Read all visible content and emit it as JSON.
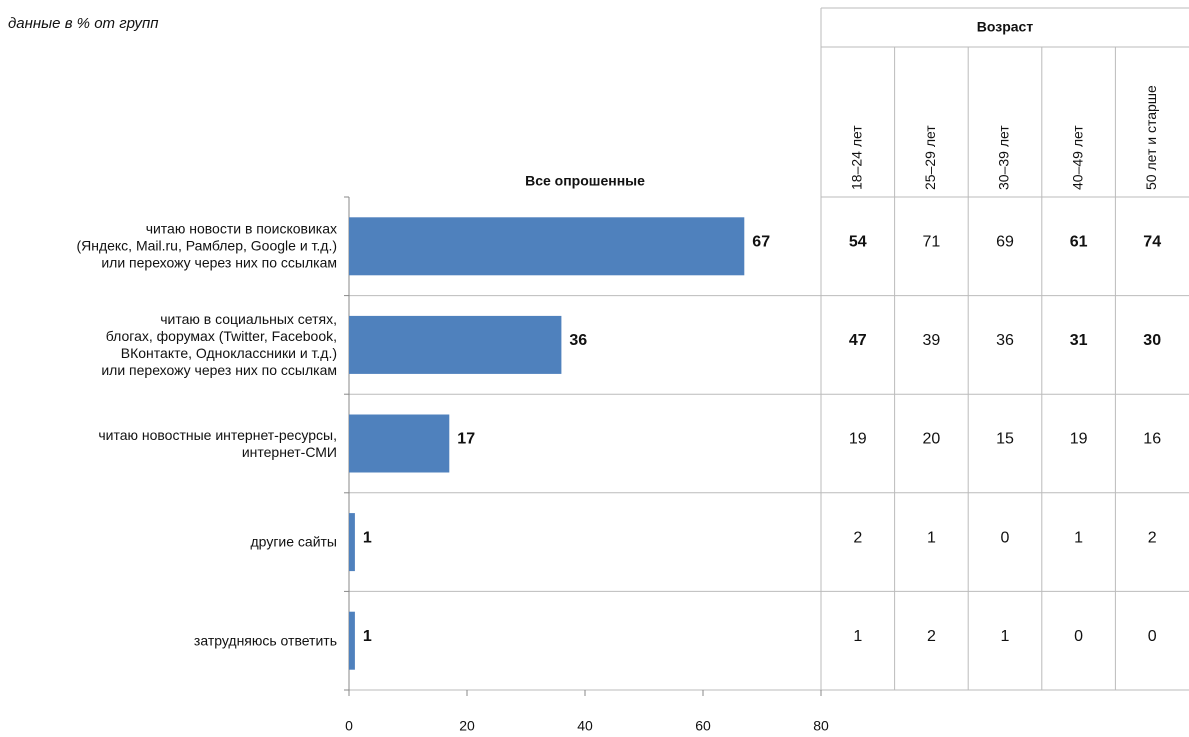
{
  "chart_data": {
    "type": "bar",
    "orientation": "horizontal",
    "subtitle": "данные в % от групп",
    "series_title": "Все опрошенные",
    "categories": [
      "читаю новости в поисковиках\n(Яндекс, Mail.ru, Рамблер, Google и т.д.)\nили перехожу через них по ссылкам",
      "читаю в социальных сетях,\nблогах, форумах (Twitter, Facebook,\nВКонтакте, Одноклассники и т.д.)\nили перехожу через них по ссылкам",
      "читаю новостные интернет-ресурсы,\nинтернет-СМИ",
      "другие сайты",
      "затрудняюсь ответить"
    ],
    "values": [
      67,
      36,
      17,
      1,
      1
    ],
    "color": "#4f81bd",
    "xlim": [
      0,
      80
    ],
    "xticks": [
      0,
      20,
      40,
      60,
      80
    ],
    "table": {
      "title": "Возраст",
      "columns": [
        "18–24 лет",
        "25–29 лет",
        "30–39 лет",
        "40–49 лет",
        "50 лет и старше"
      ],
      "rows": [
        [
          54,
          71,
          69,
          61,
          74
        ],
        [
          47,
          39,
          36,
          31,
          30
        ],
        [
          19,
          20,
          15,
          19,
          16
        ],
        [
          2,
          1,
          0,
          1,
          2
        ],
        [
          1,
          2,
          1,
          0,
          0
        ]
      ],
      "highlight": [
        [
          "#e8524f",
          null,
          null,
          "#e8524f",
          "#1f6fbf"
        ],
        [
          "#1f6fbf",
          null,
          null,
          "#e8524f",
          "#e8524f"
        ],
        [
          null,
          null,
          null,
          null,
          null
        ],
        [
          null,
          null,
          null,
          null,
          null
        ],
        [
          null,
          null,
          null,
          null,
          null
        ]
      ],
      "color": "#333333"
    }
  }
}
